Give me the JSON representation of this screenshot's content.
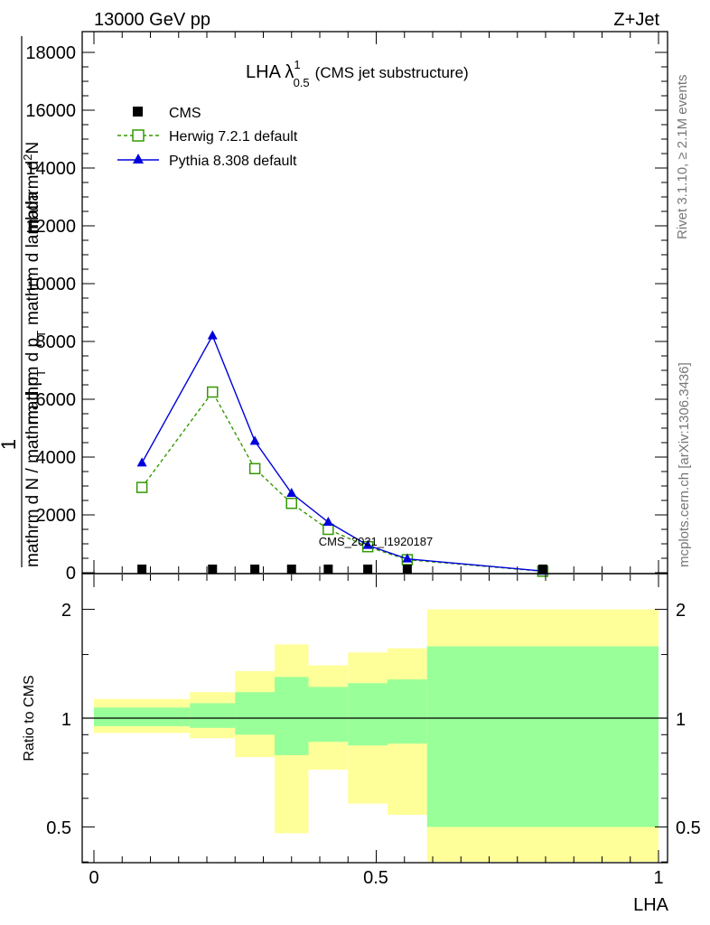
{
  "header": {
    "energy_label": "13000 GeV pp",
    "process_label": "Z+Jet"
  },
  "side_labels": {
    "rivet": "Rivet 3.1.10, ≥ 2.1M events",
    "mcplots": "mcplots.cern.ch [arXiv:1306.3436]"
  },
  "main_plot": {
    "title_prefix": "LHA λ",
    "title_sup": "1",
    "title_sub": "0.5",
    "title_suffix": "(CMS jet substructure)",
    "ylabel_left_one": "1",
    "ylabel_left_frac": "mathrm d N / mathrm d p",
    "ylabel_left_frac_sub": "T",
    "ylabel_num": "mathrm d",
    "ylabel_num_sup": "2",
    "ylabel_num_rest": "N",
    "ylabel_den": "mathrm d p",
    "ylabel_den_sub": "T",
    "ylabel_den_rest": "mathrm d lambda",
    "watermark": "CMS_2021_I1920187",
    "yticks": [
      "0",
      "2000",
      "4000",
      "6000",
      "8000",
      "10000",
      "12000",
      "14000",
      "16000",
      "18000"
    ]
  },
  "ratio_plot": {
    "ylabel": "Ratio to CMS",
    "yticks": [
      "0.5",
      "1",
      "2"
    ],
    "xticks": [
      "0",
      "0.5",
      "1"
    ],
    "xlabel": "LHA"
  },
  "legend": [
    {
      "name": "CMS",
      "color": "#000000",
      "marker": "filled-square"
    },
    {
      "name": "Herwig 7.2.1 default",
      "color": "#339900",
      "marker": "open-square",
      "dash": true
    },
    {
      "name": "Pythia 8.308 default",
      "color": "#0000dd",
      "marker": "filled-triangle"
    }
  ],
  "chart_data": {
    "type": "line",
    "xlim": [
      0,
      1
    ],
    "ylim": [
      0,
      18000
    ],
    "bin_edges": [
      0.0,
      0.17,
      0.25,
      0.32,
      0.38,
      0.45,
      0.52,
      0.59,
      1.0
    ],
    "x": [
      0.085,
      0.21,
      0.285,
      0.35,
      0.415,
      0.485,
      0.555,
      0.795
    ],
    "series": [
      {
        "name": "CMS",
        "values": [
          40,
          40,
          40,
          40,
          40,
          40,
          40,
          40
        ]
      },
      {
        "name": "Herwig 7.2.1 default",
        "values": [
          2950,
          6250,
          3600,
          2400,
          1500,
          900,
          450,
          50
        ]
      },
      {
        "name": "Pythia 8.308 default",
        "values": [
          3800,
          8200,
          4550,
          2750,
          1750,
          950,
          480,
          55
        ]
      }
    ],
    "ratio": {
      "ylim": [
        0.35,
        2.35
      ],
      "log_scale": true,
      "reference": 1,
      "green_band": [
        {
          "lo": 0.95,
          "hi": 1.07
        },
        {
          "lo": 0.94,
          "hi": 1.1
        },
        {
          "lo": 0.9,
          "hi": 1.18
        },
        {
          "lo": 0.79,
          "hi": 1.3
        },
        {
          "lo": 0.86,
          "hi": 1.22
        },
        {
          "lo": 0.84,
          "hi": 1.25
        },
        {
          "lo": 0.85,
          "hi": 1.28
        },
        {
          "lo": 0.5,
          "hi": 1.58
        }
      ],
      "yellow_band": [
        {
          "lo": 0.91,
          "hi": 1.13
        },
        {
          "lo": 0.88,
          "hi": 1.18
        },
        {
          "lo": 0.78,
          "hi": 1.35
        },
        {
          "lo": 0.48,
          "hi": 1.6
        },
        {
          "lo": 0.72,
          "hi": 1.4
        },
        {
          "lo": 0.58,
          "hi": 1.52
        },
        {
          "lo": 0.54,
          "hi": 1.56
        },
        {
          "lo": 0.35,
          "hi": 2.0
        }
      ],
      "yellow_color": "#ffff99",
      "green_color": "#99ff99"
    }
  }
}
